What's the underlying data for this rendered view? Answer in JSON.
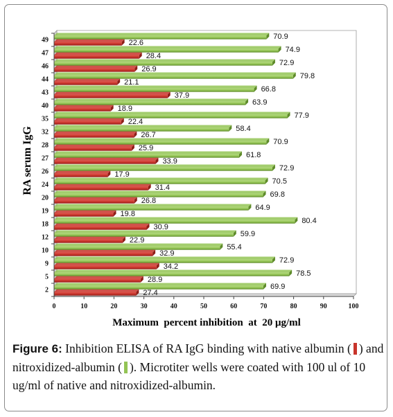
{
  "colors": {
    "native": "#c8342b",
    "native_dark": "#8e1e18",
    "nitro": "#93c455",
    "nitro_dark": "#5e8a2a"
  },
  "caption": {
    "figure_label": "Figure 6:",
    "part1": " Inhibition ELISA of RA IgG binding with native albumin (",
    "part2": ") and nitroxidized-albumin (",
    "part3": "). Microtiter wells were coated with 100 ul of 10 ug/ml of native and nitroxidized-albumin."
  },
  "chart_data": {
    "type": "bar",
    "orientation": "horizontal",
    "title": "",
    "xlabel": "Maximum  percent inhibition  at  20 μg/ml",
    "ylabel": "RA serum IgG",
    "xlim": [
      0,
      100
    ],
    "x_ticks": [
      0,
      10,
      20,
      30,
      40,
      50,
      60,
      70,
      80,
      90,
      100
    ],
    "grid": false,
    "legend": "none",
    "categories": [
      "2",
      "5",
      "9",
      "10",
      "12",
      "18",
      "19",
      "20",
      "24",
      "26",
      "27",
      "28",
      "32",
      "35",
      "40",
      "43",
      "44",
      "46",
      "47",
      "49"
    ],
    "series": [
      {
        "key": "native",
        "values": [
          27.4,
          28.9,
          34.2,
          32.9,
          22.9,
          30.9,
          19.8,
          26.8,
          31.4,
          17.9,
          33.9,
          25.9,
          26.7,
          22.4,
          18.9,
          37.9,
          21.1,
          26.9,
          28.4,
          22.6
        ],
        "labels": [
          "27.4",
          "28.9",
          "34.2",
          "32.9",
          "22.9",
          "30.9",
          "19.8",
          "26.8",
          "31.4",
          "17.9",
          "33.9",
          "25.9",
          "26.7",
          "22.4",
          "18.9",
          "37.9",
          "21.1",
          "26.9",
          "28.4",
          "22.6"
        ]
      },
      {
        "key": "nitroxidized",
        "values": [
          69.9,
          78.5,
          72.9,
          55.4,
          59.9,
          80.4,
          64.9,
          69.8,
          70.5,
          72.9,
          61.8,
          70.9,
          58.4,
          77.9,
          63.9,
          66.8,
          79.8,
          72.9,
          74.9,
          70.9
        ],
        "labels": [
          "69.9",
          "78.5",
          "72.9",
          "55.4",
          "59.9",
          "80.4",
          "64.9",
          "69.8",
          "70.5",
          "72.9",
          "61.8",
          "70.9",
          "58.4",
          "77.9",
          "63.9",
          "66.8",
          "79.8",
          "72.9",
          "74.9",
          "70.9"
        ]
      }
    ]
  }
}
